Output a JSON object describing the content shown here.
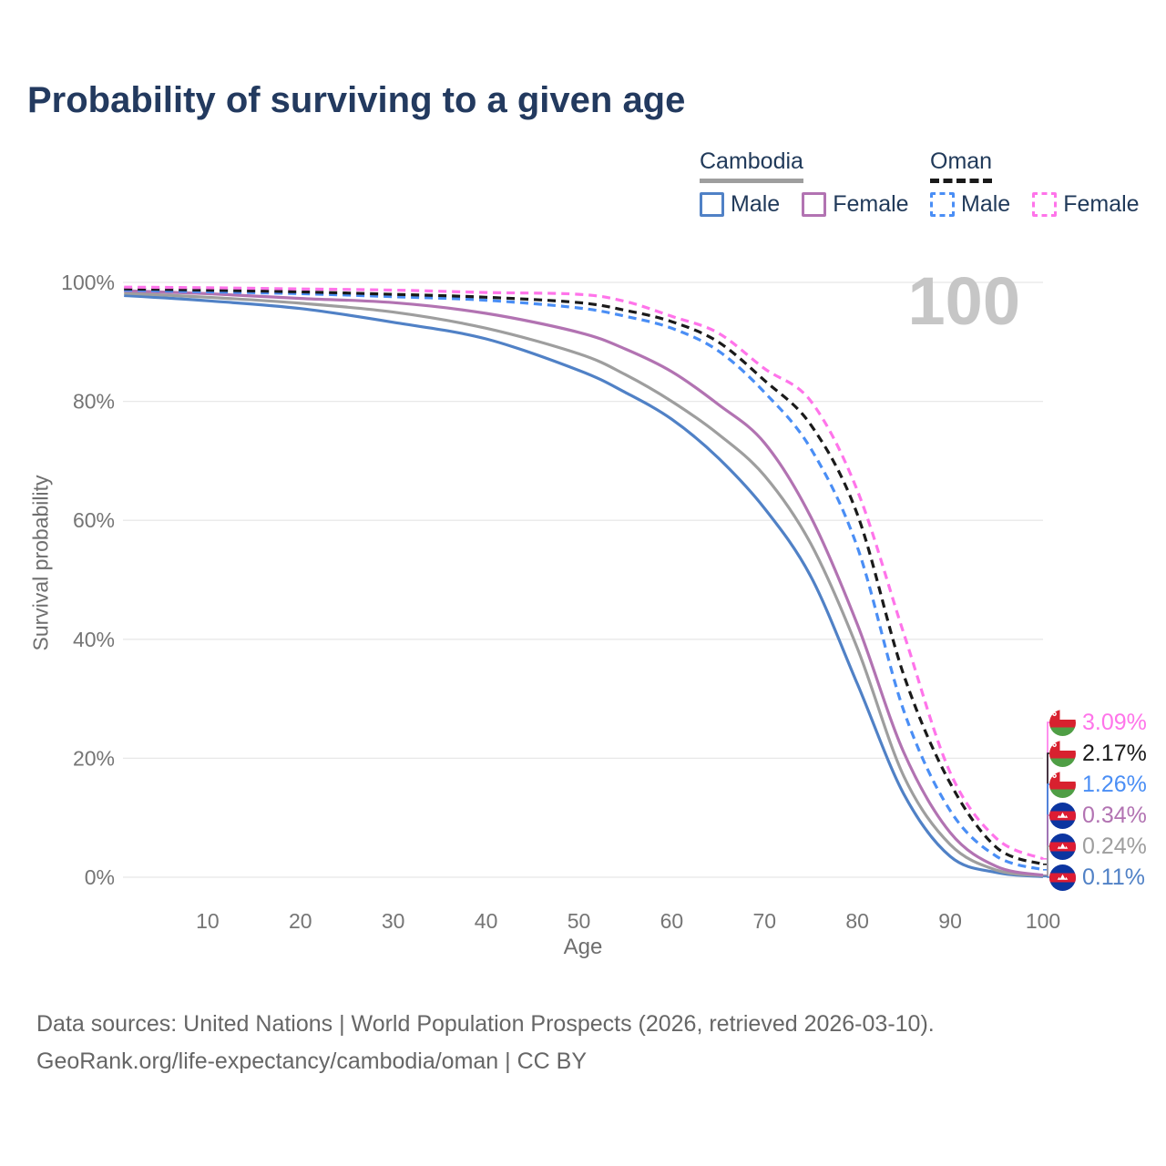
{
  "title": "Probability of surviving to a given age",
  "legend": {
    "groups": [
      {
        "country": "Cambodia",
        "line_style": "solid",
        "underline_color": "#9e9e9e",
        "items": [
          {
            "label": "Male",
            "color": "#5081c6"
          },
          {
            "label": "Female",
            "color": "#b273b2"
          }
        ]
      },
      {
        "country": "Oman",
        "line_style": "dashed",
        "underline_color": "#1a1a1a",
        "items": [
          {
            "label": "Male",
            "color": "#4a8ef5"
          },
          {
            "label": "Female",
            "color": "#ff74ea"
          }
        ]
      }
    ]
  },
  "chart": {
    "watermark": "100",
    "y_title": "Survival probability",
    "x_title": "Age"
  },
  "chart_data": {
    "type": "line",
    "title": "Probability of surviving to a given age",
    "xlabel": "Age",
    "ylabel": "Survival probability",
    "xlim": [
      0,
      100
    ],
    "ylim": [
      0,
      100
    ],
    "x_ticks": [
      10,
      20,
      30,
      40,
      50,
      60,
      70,
      80,
      90,
      100
    ],
    "y_ticks": [
      0,
      20,
      40,
      60,
      80,
      100
    ],
    "y_tick_suffix": "%",
    "grid": "horizontal",
    "grid_color": "#e8e8e8",
    "legend_position": "top-right",
    "highlighted_age": 100,
    "ages": [
      1,
      10,
      20,
      30,
      40,
      50,
      55,
      60,
      65,
      70,
      75,
      80,
      85,
      90,
      95,
      100
    ],
    "series": [
      {
        "id": "cambodia_male",
        "name": "Cambodia Male",
        "country": "Cambodia",
        "sex": "Male",
        "color": "#5081c6",
        "dashed": false,
        "values": [
          97.8,
          96.9,
          95.6,
          93.3,
          90.5,
          85.2,
          81.5,
          77.0,
          70.5,
          62.0,
          50.5,
          32.5,
          14.0,
          3.5,
          0.8,
          0.11
        ],
        "end_label": "0.11%"
      },
      {
        "id": "cambodia_total",
        "name": "Cambodia",
        "country": "Cambodia",
        "sex": "Both",
        "color": "#9e9e9e",
        "dashed": false,
        "values": [
          98.2,
          97.5,
          96.5,
          95.0,
          92.3,
          88.0,
          84.5,
          80.0,
          74.5,
          67.5,
          56.0,
          38.5,
          17.0,
          5.5,
          1.2,
          0.24
        ],
        "end_label": "0.24%"
      },
      {
        "id": "cambodia_female",
        "name": "Cambodia Female",
        "country": "Cambodia",
        "sex": "Female",
        "color": "#b273b2",
        "dashed": false,
        "values": [
          98.6,
          98.1,
          97.3,
          96.6,
          94.8,
          91.6,
          88.8,
          85.0,
          79.5,
          73.0,
          60.5,
          42.5,
          21.0,
          7.5,
          1.8,
          0.34
        ],
        "end_label": "0.34%"
      },
      {
        "id": "oman_male",
        "name": "Oman Male",
        "country": "Oman",
        "sex": "Male",
        "color": "#4a8ef5",
        "dashed": true,
        "values": [
          98.7,
          98.4,
          98.1,
          97.6,
          97.0,
          95.7,
          94.3,
          92.3,
          88.5,
          81.5,
          72.0,
          55.5,
          28.0,
          11.2,
          3.5,
          1.26
        ],
        "end_label": "1.26%"
      },
      {
        "id": "oman_total",
        "name": "Oman",
        "country": "Oman",
        "sex": "Both",
        "color": "#1a1a1a",
        "dashed": true,
        "values": [
          98.9,
          98.7,
          98.4,
          98.0,
          97.5,
          96.6,
          95.3,
          93.4,
          90.0,
          83.5,
          76.0,
          61.0,
          34.0,
          15.8,
          5.0,
          2.17
        ],
        "end_label": "2.17%"
      },
      {
        "id": "oman_female",
        "name": "Oman Female",
        "country": "Oman",
        "sex": "Female",
        "color": "#ff74ea",
        "dashed": true,
        "values": [
          99.2,
          99.1,
          98.9,
          98.7,
          98.3,
          98.0,
          96.8,
          94.3,
          91.5,
          85.5,
          80.0,
          65.0,
          41.0,
          17.6,
          6.5,
          3.09
        ],
        "end_label": "3.09%"
      }
    ],
    "end_labels_order": [
      "oman_female",
      "oman_total",
      "oman_male",
      "cambodia_female",
      "cambodia_total",
      "cambodia_male"
    ],
    "flag_colors": {
      "oman": {
        "red": "#d8212f",
        "green": "#4f9e45",
        "white": "#ffffff"
      },
      "cambodia": {
        "blue": "#0c35a0",
        "red": "#dd1c33",
        "white": "#ffffff"
      }
    }
  },
  "footer": {
    "line1": "Data sources: United Nations | World Population Prospects (2026, retrieved 2026-03-10).",
    "line2": "GeoRank.org/life-expectancy/cambodia/oman | CC BY"
  }
}
